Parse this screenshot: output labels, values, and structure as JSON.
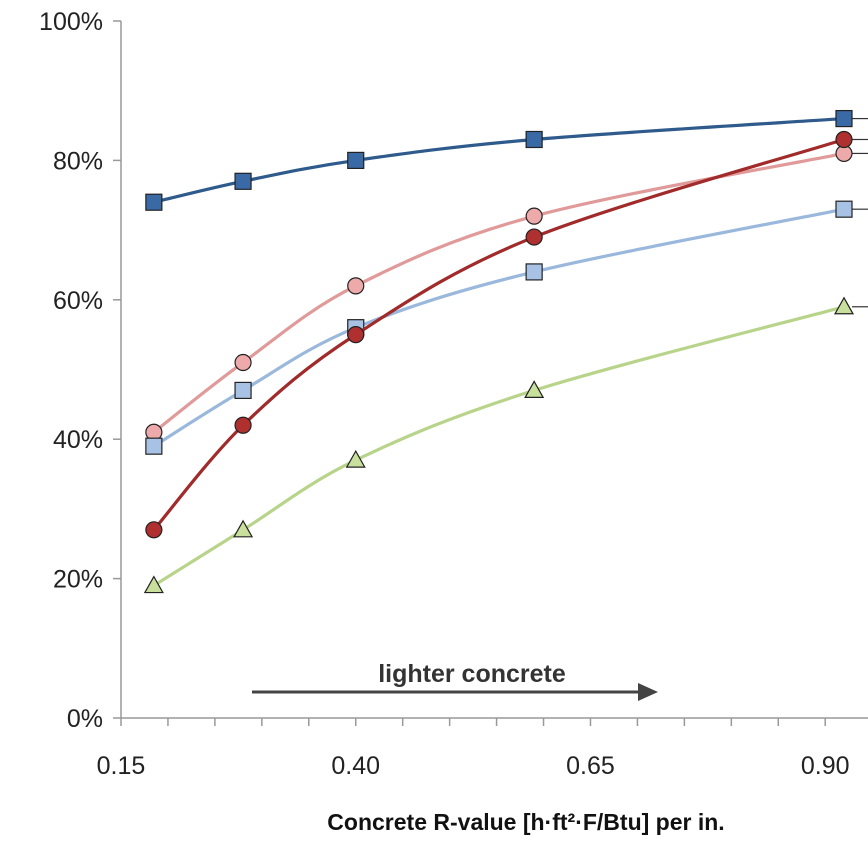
{
  "chart_data": {
    "type": "line",
    "title": "",
    "xlabel": "Concrete R-value [h·ft²·F/Btu] per in.",
    "ylabel": "",
    "x_ticks": [
      "0.15",
      "0.40",
      "0.65",
      "0.90"
    ],
    "y_ticks": [
      "0%",
      "20%",
      "40%",
      "60%",
      "80%",
      "100%"
    ],
    "xlim": [
      0.15,
      0.92
    ],
    "ylim": [
      0,
      100
    ],
    "grid": false,
    "annotation": "lighter concrete",
    "series": [
      {
        "color": "#2e5a8c",
        "fill": "#3a6aa6",
        "marker": "square",
        "x": [
          0.185,
          0.28,
          0.4,
          0.59,
          0.92
        ],
        "values": [
          74,
          77,
          80,
          83,
          86
        ]
      },
      {
        "color": "#e09a9a",
        "fill": "#eeaaaa",
        "marker": "circle",
        "x": [
          0.185,
          0.28,
          0.4,
          0.59,
          0.92
        ],
        "values": [
          41,
          51,
          62,
          72,
          81
        ]
      },
      {
        "color": "#9ab8dc",
        "fill": "#a7c2e4",
        "marker": "square",
        "x": [
          0.185,
          0.28,
          0.4,
          0.59,
          0.92
        ],
        "values": [
          39,
          47,
          56,
          64,
          73
        ]
      },
      {
        "color": "#a12a2a",
        "fill": "#b03030",
        "marker": "circle",
        "x": [
          0.185,
          0.28,
          0.4,
          0.59,
          0.92
        ],
        "values": [
          27,
          42,
          55,
          69,
          83
        ]
      },
      {
        "color": "#b8d48a",
        "fill": "#c8e09c",
        "marker": "triangle",
        "x": [
          0.185,
          0.28,
          0.4,
          0.59,
          0.92
        ],
        "values": [
          19,
          27,
          37,
          47,
          59
        ]
      }
    ]
  }
}
